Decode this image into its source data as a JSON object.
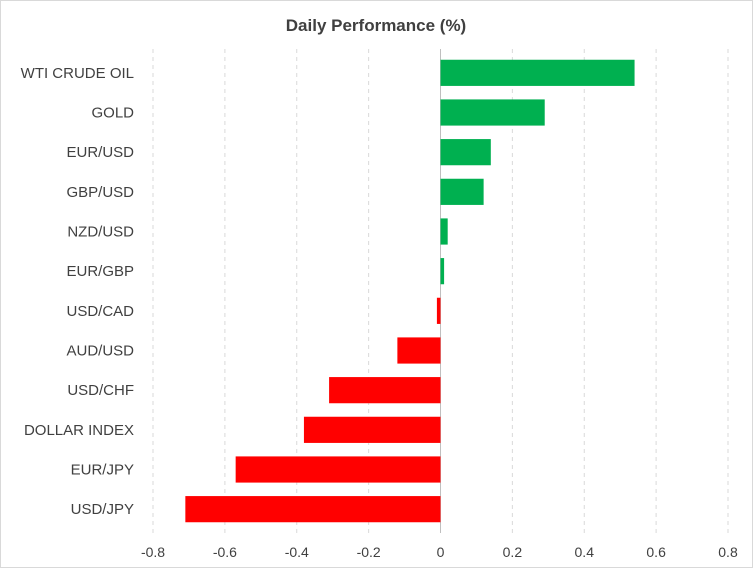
{
  "chart_data": {
    "type": "bar",
    "orientation": "horizontal",
    "title": "Daily Performance (%)",
    "xlabel": "",
    "ylabel": "",
    "categories": [
      "WTI CRUDE OIL",
      "GOLD",
      "EUR/USD",
      "GBP/USD",
      "NZD/USD",
      "EUR/GBP",
      "USD/CAD",
      "AUD/USD",
      "USD/CHF",
      "DOLLAR INDEX",
      "EUR/JPY",
      "USD/JPY"
    ],
    "values": [
      0.54,
      0.29,
      0.14,
      0.12,
      0.02,
      0.01,
      -0.01,
      -0.12,
      -0.31,
      -0.38,
      -0.57,
      -0.71
    ],
    "xlim": [
      -0.8,
      0.8
    ],
    "xticks": [
      "-0.8",
      "-0.6",
      "-0.4",
      "-0.2",
      "0",
      "0.2",
      "0.4",
      "0.6",
      "0.8"
    ],
    "grid": "vertical dashed",
    "legend": "none",
    "colors": {
      "positive": "#00b050",
      "negative": "#ff0000"
    }
  }
}
